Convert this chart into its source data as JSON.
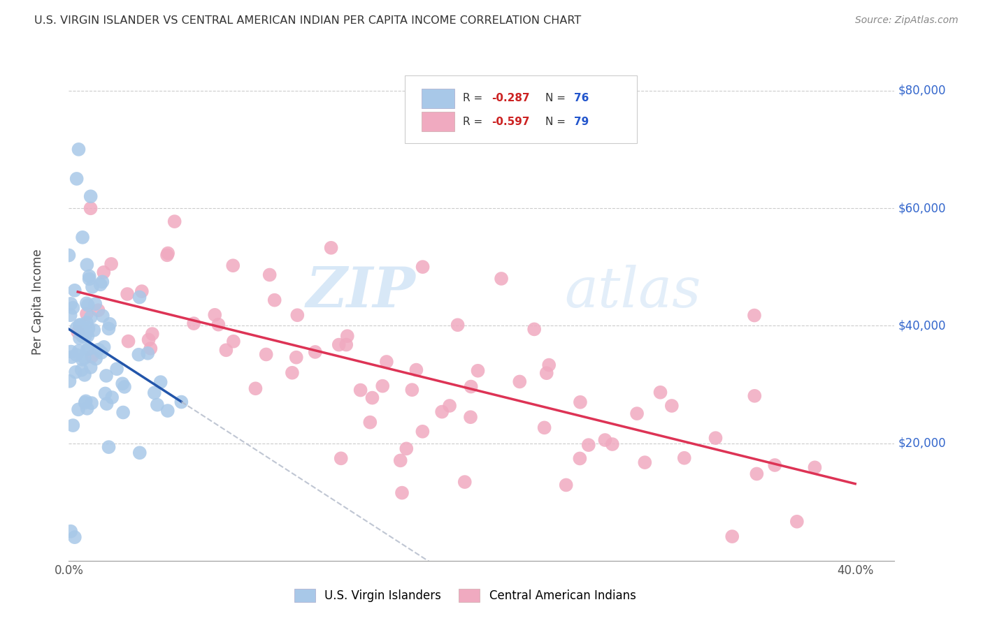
{
  "title": "U.S. VIRGIN ISLANDER VS CENTRAL AMERICAN INDIAN PER CAPITA INCOME CORRELATION CHART",
  "source": "Source: ZipAtlas.com",
  "ylabel": "Per Capita Income",
  "ylim": [
    0,
    88000
  ],
  "xlim": [
    0.0,
    0.42
  ],
  "yticks": [
    0,
    20000,
    40000,
    60000,
    80000
  ],
  "ytick_labels": [
    "",
    "$20,000",
    "$40,000",
    "$60,000",
    "$80,000"
  ],
  "xticks": [
    0.0,
    0.05,
    0.1,
    0.15,
    0.2,
    0.25,
    0.3,
    0.35,
    0.4
  ],
  "series1_label": "U.S. Virgin Islanders",
  "series2_label": "Central American Indians",
  "series1_color": "#a8c8e8",
  "series2_color": "#f0aac0",
  "series1_line_color": "#2255aa",
  "series2_line_color": "#dd3355",
  "series1_R": "-0.287",
  "series1_N": "76",
  "series2_R": "-0.597",
  "series2_N": "79",
  "watermark_zip": "ZIP",
  "watermark_atlas": "atlas",
  "background_color": "#ffffff",
  "grid_color": "#cccccc",
  "legend_R_color": "#cc2222",
  "legend_N_color": "#2255cc",
  "legend_text_color": "#333333"
}
